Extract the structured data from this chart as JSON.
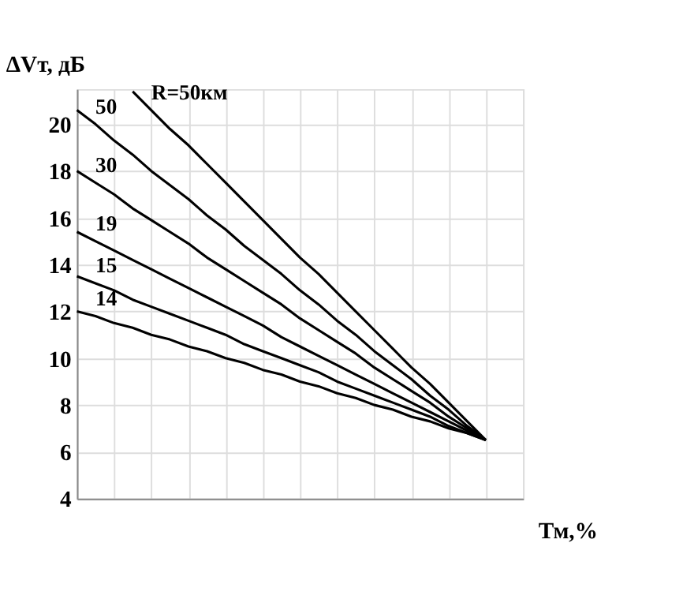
{
  "chart_data": {
    "type": "line",
    "xlabel": "Тм,%",
    "ylabel": "ΔVт, дБ",
    "categories": [
      null,
      null,
      null,
      null,
      null,
      null,
      null,
      null,
      null,
      null,
      null,
      null,
      null,
      null,
      null,
      null,
      null,
      null,
      null,
      null,
      null,
      null,
      null,
      null,
      null
    ],
    "ylim": [
      4,
      21.5
    ],
    "yticks": [
      4,
      6,
      8,
      10,
      12,
      14,
      16,
      18,
      20
    ],
    "tick_labels": "y",
    "grid": true,
    "marker": "none",
    "line_style": "solid",
    "series": [
      {
        "name": "R=50км",
        "color": "#000000",
        "values": [
          null,
          null,
          null,
          21.4,
          20.6,
          19.8,
          19.1,
          18.3,
          17.5,
          16.7,
          15.9,
          15.1,
          14.3,
          13.6,
          12.8,
          12.0,
          11.2,
          10.4,
          9.6,
          8.9,
          8.1,
          7.3,
          6.5,
          null,
          null
        ]
      },
      {
        "name": "50",
        "color": "#000000",
        "values": [
          20.6,
          20.0,
          19.3,
          18.7,
          18.0,
          17.4,
          16.8,
          16.1,
          15.5,
          14.8,
          14.2,
          13.6,
          12.9,
          12.3,
          11.6,
          11.0,
          10.3,
          9.7,
          9.1,
          8.4,
          7.8,
          7.1,
          6.5,
          null,
          null
        ]
      },
      {
        "name": "30",
        "color": "#000000",
        "values": [
          18.0,
          17.5,
          17.0,
          16.4,
          15.9,
          15.4,
          14.9,
          14.3,
          13.8,
          13.3,
          12.8,
          12.3,
          11.7,
          11.2,
          10.7,
          10.2,
          9.6,
          9.1,
          8.6,
          8.1,
          7.5,
          7.0,
          6.5,
          null,
          null
        ]
      },
      {
        "name": "19",
        "color": "#000000",
        "values": [
          15.4,
          15.0,
          14.6,
          14.2,
          13.8,
          13.4,
          13.0,
          12.6,
          12.2,
          11.8,
          11.4,
          10.9,
          10.5,
          10.1,
          9.7,
          9.3,
          8.9,
          8.5,
          8.1,
          7.7,
          7.3,
          6.9,
          6.5,
          null,
          null
        ]
      },
      {
        "name": "15",
        "color": "#000000",
        "values": [
          13.5,
          13.2,
          12.9,
          12.5,
          12.2,
          11.9,
          11.6,
          11.3,
          11.0,
          10.6,
          10.3,
          10.0,
          9.7,
          9.4,
          9.0,
          8.7,
          8.4,
          8.1,
          7.8,
          7.5,
          7.1,
          6.8,
          6.5,
          null,
          null
        ]
      },
      {
        "name": "14",
        "color": "#000000",
        "values": [
          12.0,
          11.8,
          11.5,
          11.3,
          11.0,
          10.8,
          10.5,
          10.3,
          10.0,
          9.8,
          9.5,
          9.3,
          9.0,
          8.8,
          8.5,
          8.3,
          8.0,
          7.8,
          7.5,
          7.3,
          7.0,
          6.8,
          6.5,
          null,
          null
        ]
      }
    ]
  }
}
